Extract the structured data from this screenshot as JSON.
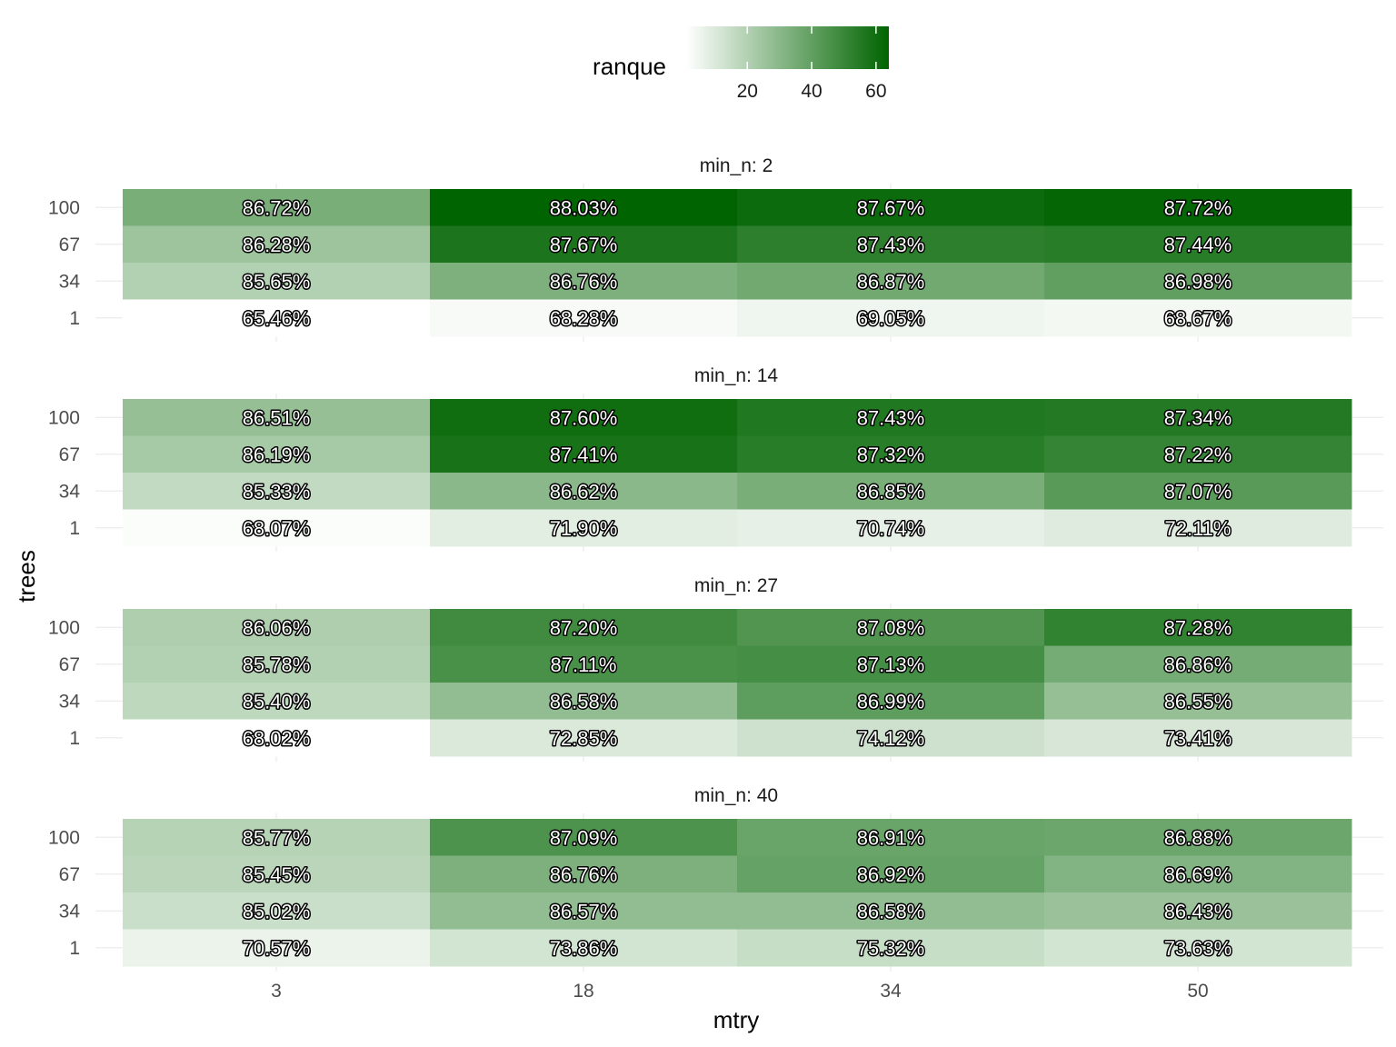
{
  "chart_data": {
    "type": "heatmap",
    "xlabel": "mtry",
    "ylabel": "trees",
    "x_categories": [
      "3",
      "18",
      "34",
      "50"
    ],
    "y_categories": [
      "1",
      "34",
      "67",
      "100"
    ],
    "facet_prefix": "min_n: ",
    "legend": {
      "title": "ranque",
      "position": "top",
      "ticks": [
        20,
        40,
        60
      ],
      "range": [
        1,
        64
      ],
      "low_color": "#ffffff",
      "high_color": "#006400"
    },
    "facets": [
      {
        "label": "min_n: 2",
        "rows": [
          {
            "trees": "100",
            "labels": [
              "86.72%",
              "88.03%",
              "87.67%",
              "87.72%"
            ],
            "ranque": [
              34,
              64,
              61,
              63
            ]
          },
          {
            "trees": "67",
            "labels": [
              "86.28%",
              "87.67%",
              "87.43%",
              "87.44%"
            ],
            "ranque": [
              25,
              57,
              53,
              54
            ]
          },
          {
            "trees": "34",
            "labels": [
              "85.65%",
              "86.76%",
              "86.87%",
              "86.98%"
            ],
            "ranque": [
              20,
              33,
              36,
              40
            ]
          },
          {
            "trees": "1",
            "labels": [
              "65.46%",
              "68.28%",
              "69.05%",
              "68.67%"
            ],
            "ranque": [
              1,
              3,
              5,
              4
            ]
          }
        ]
      },
      {
        "label": "min_n: 14",
        "rows": [
          {
            "trees": "100",
            "labels": [
              "86.51%",
              "87.60%",
              "87.43%",
              "87.34%"
            ],
            "ranque": [
              27,
              60,
              56,
              55
            ]
          },
          {
            "trees": "67",
            "labels": [
              "86.19%",
              "87.41%",
              "87.32%",
              "87.22%"
            ],
            "ranque": [
              23,
              58,
              54,
              51
            ]
          },
          {
            "trees": "34",
            "labels": [
              "85.33%",
              "86.62%",
              "86.85%",
              "87.07%"
            ],
            "ranque": [
              16,
              30,
              34,
              42
            ]
          },
          {
            "trees": "1",
            "labels": [
              "68.07%",
              "71.90%",
              "70.74%",
              "72.11%"
            ],
            "ranque": [
              2,
              8,
              7,
              9
            ]
          }
        ]
      },
      {
        "label": "min_n: 27",
        "rows": [
          {
            "trees": "100",
            "labels": [
              "86.06%",
              "87.20%",
              "87.08%",
              "87.28%"
            ],
            "ranque": [
              21,
              48,
              44,
              52
            ]
          },
          {
            "trees": "67",
            "labels": [
              "85.78%",
              "87.11%",
              "87.13%",
              "86.86%"
            ],
            "ranque": [
              20,
              46,
              47,
              35
            ]
          },
          {
            "trees": "34",
            "labels": [
              "85.40%",
              "86.58%",
              "86.99%",
              "86.55%"
            ],
            "ranque": [
              17,
              28,
              41,
              27
            ]
          },
          {
            "trees": "1",
            "labels": [
              "68.02%",
              "72.85%",
              "74.12%",
              "73.41%"
            ],
            "ranque": [
              1,
              10,
              13,
              11
            ]
          }
        ]
      },
      {
        "label": "min_n: 40",
        "rows": [
          {
            "trees": "100",
            "labels": [
              "85.77%",
              "87.09%",
              "86.91%",
              "86.88%"
            ],
            "ranque": [
              19,
              45,
              38,
              37
            ]
          },
          {
            "trees": "67",
            "labels": [
              "85.45%",
              "86.76%",
              "86.92%",
              "86.69%"
            ],
            "ranque": [
              18,
              33,
              39,
              32
            ]
          },
          {
            "trees": "34",
            "labels": [
              "85.02%",
              "86.57%",
              "86.58%",
              "86.43%"
            ],
            "ranque": [
              14,
              28,
              28,
              26
            ]
          },
          {
            "trees": "1",
            "labels": [
              "70.57%",
              "73.86%",
              "75.32%",
              "73.63%"
            ],
            "ranque": [
              6,
              12,
              15,
              12
            ]
          }
        ]
      }
    ]
  }
}
